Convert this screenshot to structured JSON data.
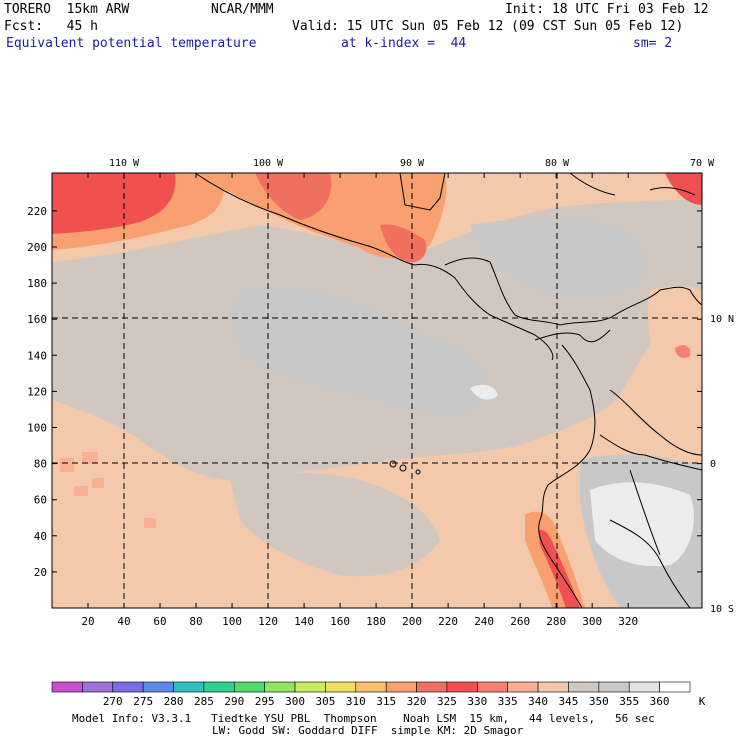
{
  "header": {
    "model": "TORERO  15km ARW",
    "center": "NCAR/MMM",
    "init": "Init: 18 UTC Fri 03 Feb 12",
    "fcst": "Fcst:   45 h",
    "valid": "Valid: 15 UTC Sun 05 Feb 12 (09 CST Sun 05 Feb 12)",
    "field": "Equivalent potential temperature",
    "level": "at k-index =  44",
    "smooth": "sm= 2"
  },
  "axes": {
    "x_ticks": [
      "20",
      "40",
      "60",
      "80",
      "100",
      "120",
      "140",
      "160",
      "180",
      "200",
      "220",
      "240",
      "260",
      "280",
      "300",
      "320"
    ],
    "y_ticks": [
      "20",
      "40",
      "60",
      "80",
      "100",
      "120",
      "140",
      "160",
      "180",
      "200",
      "220"
    ],
    "lon_labels": [
      "110 W",
      "100 W",
      "90 W",
      "80 W",
      "70 W"
    ],
    "lat_labels": [
      "10 N",
      "0",
      "10 S"
    ]
  },
  "colorbar": {
    "labels": [
      "270",
      "275",
      "280",
      "285",
      "290",
      "295",
      "300",
      "305",
      "310",
      "315",
      "320",
      "325",
      "330",
      "335",
      "340",
      "345",
      "350",
      "355",
      "360"
    ],
    "unit": "K",
    "colors": [
      "#c84fd0",
      "#a070d8",
      "#7a6ee6",
      "#5a8ae8",
      "#30c0c0",
      "#30d090",
      "#50dc70",
      "#90e460",
      "#c8ec60",
      "#f0e060",
      "#f8c070",
      "#f8a070",
      "#f07060",
      "#f05050",
      "#f88070",
      "#f8b090",
      "#f4c8aa",
      "#d0c8c0",
      "#c8c8c8",
      "#e4e4e4",
      "#ffffff"
    ]
  },
  "footer": {
    "line1": "Model Info: V3.3.1   Tiedtke YSU PBL  Thompson    Noah LSM  15 km,   44 levels,   56 sec",
    "line2": "LW: Godd SW: Goddard DIFF  simple KM: 2D Smagor"
  }
}
